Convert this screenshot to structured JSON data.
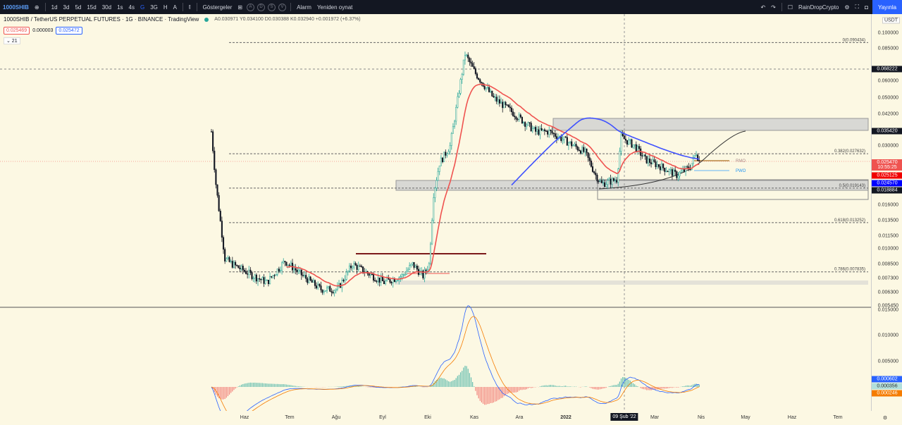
{
  "topbar": {
    "symbol": "1000SHIB",
    "intervals": [
      "1d",
      "3d",
      "5d",
      "15d",
      "30d",
      "1s",
      "4s",
      "G",
      "3G",
      "H",
      "A"
    ],
    "indicators": "Göstergeler",
    "circles": [
      "A",
      "D",
      "S",
      "V"
    ],
    "alarm": "Alarm",
    "replay": "Yeniden oynat",
    "user": "RainDropCrypto",
    "publish": "Yayınla"
  },
  "legend": {
    "title": "1000SHIB / TetherUS PERPETUAL FUTURES · 1G · BINANCE · TradingView",
    "ohlc": "A0.030971 Y0.034100 D0.030388 K0.032940 +0.001972 (+6.37%)",
    "bid": "0.025469",
    "spread": "0.000003",
    "ask": "0.025472",
    "collapse": "⌄ 21"
  },
  "price_axis": {
    "currency": "USDT",
    "ticks": [
      "0.100000",
      "0.085000",
      "0.060000",
      "0.050000",
      "0.042000",
      "0.030000",
      "0.016000",
      "0.013500",
      "0.011500",
      "0.010000",
      "0.008500",
      "0.007300",
      "0.006300",
      "0.005450"
    ],
    "badges": [
      {
        "text": "0.068222",
        "color": "#131722"
      },
      {
        "text": "0.035420",
        "color": "#131722"
      },
      {
        "text": "0.025470",
        "sub": "10:55:25",
        "color": "#ef5350"
      },
      {
        "text": "0.025125",
        "color": "#f00000"
      },
      {
        "text": "0.024570",
        "color": "#0000ff"
      },
      {
        "text": "0.018884",
        "color": "#131722"
      }
    ]
  },
  "macd_axis": {
    "ticks": [
      "0.015000",
      "0.010000",
      "0.005000"
    ],
    "badges": [
      {
        "text": "0.000602",
        "color": "#2962ff"
      },
      {
        "text": "0.000356",
        "color": "#b2dfdb"
      },
      {
        "text": "0.000246",
        "color": "#f57c00"
      }
    ]
  },
  "fib": [
    {
      "label": "0(0.090434)",
      "price": 0.090434
    },
    {
      "label": "0.382(0.027632)",
      "price": 0.027632
    },
    {
      "label": "0.5(0.019143)",
      "price": 0.019143
    },
    {
      "label": "0.618(0.013252)",
      "price": 0.013252
    },
    {
      "label": "0.786(0.007835)",
      "price": 0.007835
    }
  ],
  "pivots": {
    "r": "RMO",
    "pwo": "PWO"
  },
  "time_axis": {
    "labels": [
      "Haz",
      "Tem",
      "Ağu",
      "Eyl",
      "Eki",
      "Kas",
      "Ara",
      "2022",
      "Mar",
      "Nis",
      "May",
      "Haz",
      "Tem"
    ],
    "crosshair": "09 Şub '22"
  },
  "chart_data": {
    "type": "candlestick",
    "anchors": [
      [
        0,
        0.035
      ],
      [
        3,
        0.02
      ],
      [
        9,
        0.009
      ],
      [
        14,
        0.0085
      ],
      [
        28,
        0.0075
      ],
      [
        37,
        0.007
      ],
      [
        49,
        0.0088
      ],
      [
        61,
        0.0075
      ],
      [
        73,
        0.0065
      ],
      [
        84,
        0.0065
      ],
      [
        94,
        0.0085
      ],
      [
        103,
        0.0078
      ],
      [
        115,
        0.007
      ],
      [
        127,
        0.0075
      ],
      [
        134,
        0.0085
      ],
      [
        141,
        0.0075
      ],
      [
        145,
        0.0085
      ],
      [
        148,
        0.018
      ],
      [
        152,
        0.025
      ],
      [
        159,
        0.03
      ],
      [
        169,
        0.08
      ],
      [
        176,
        0.065
      ],
      [
        188,
        0.05
      ],
      [
        197,
        0.045
      ],
      [
        206,
        0.04
      ],
      [
        216,
        0.035
      ],
      [
        225,
        0.035
      ],
      [
        235,
        0.032
      ],
      [
        249,
        0.028
      ],
      [
        256,
        0.022
      ],
      [
        260,
        0.02
      ],
      [
        270,
        0.021
      ],
      [
        273,
        0.033
      ],
      [
        282,
        0.03
      ],
      [
        289,
        0.026
      ],
      [
        300,
        0.024
      ],
      [
        310,
        0.022
      ],
      [
        319,
        0.024
      ],
      [
        323,
        0.028
      ],
      [
        325,
        0.0255
      ]
    ],
    "anchor_units": "[days since chart start, price USDT]",
    "colors": {
      "up": "#26a69a",
      "down": "#131722",
      "ema": "#ef5350",
      "ma": "#3f51ff"
    }
  }
}
